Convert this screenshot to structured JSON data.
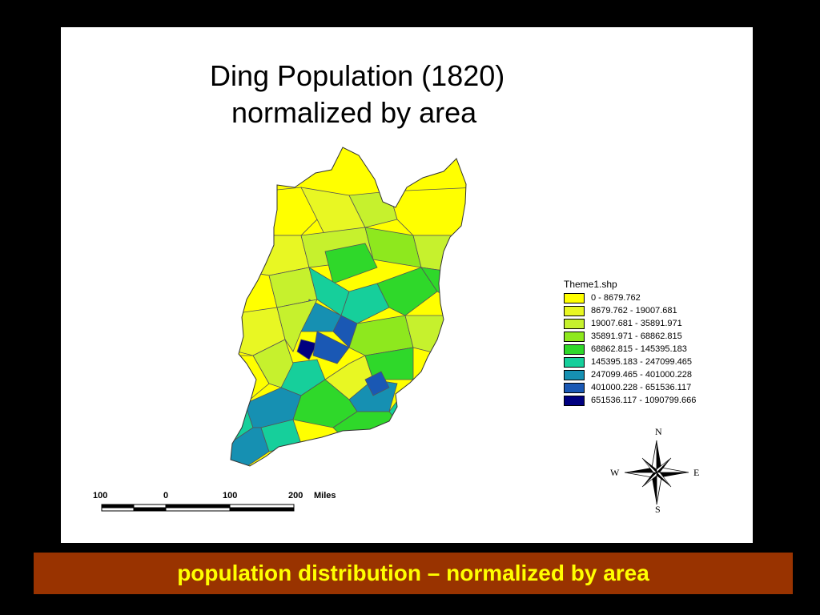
{
  "map": {
    "title_line1": "Ding Population (1820)",
    "title_line2": "normalized by area",
    "legend": {
      "title": "Theme1.shp",
      "classes": [
        {
          "label": "0 - 8679.762",
          "color": "#ffff00"
        },
        {
          "label": "8679.762 - 19007.681",
          "color": "#e8f723"
        },
        {
          "label": "19007.681 - 35891.971",
          "color": "#c6f12d"
        },
        {
          "label": "35891.971 - 68862.815",
          "color": "#8ee81e"
        },
        {
          "label": "68862.815 - 145395.183",
          "color": "#2fd82a"
        },
        {
          "label": "145395.183 - 247099.465",
          "color": "#16cf9b"
        },
        {
          "label": "247099.465 - 401000.228",
          "color": "#1690b2"
        },
        {
          "label": "401000.228 - 651536.117",
          "color": "#1a58b4"
        },
        {
          "label": "651536.117 - 1090799.666",
          "color": "#000080"
        }
      ]
    },
    "compass": {
      "n": "N",
      "s": "S",
      "e": "E",
      "w": "W"
    },
    "scale_bar": {
      "ticks": [
        "100",
        "0",
        "100",
        "200"
      ],
      "unit": "Miles"
    }
  },
  "banner": {
    "text": "population distribution – normalized by area"
  }
}
